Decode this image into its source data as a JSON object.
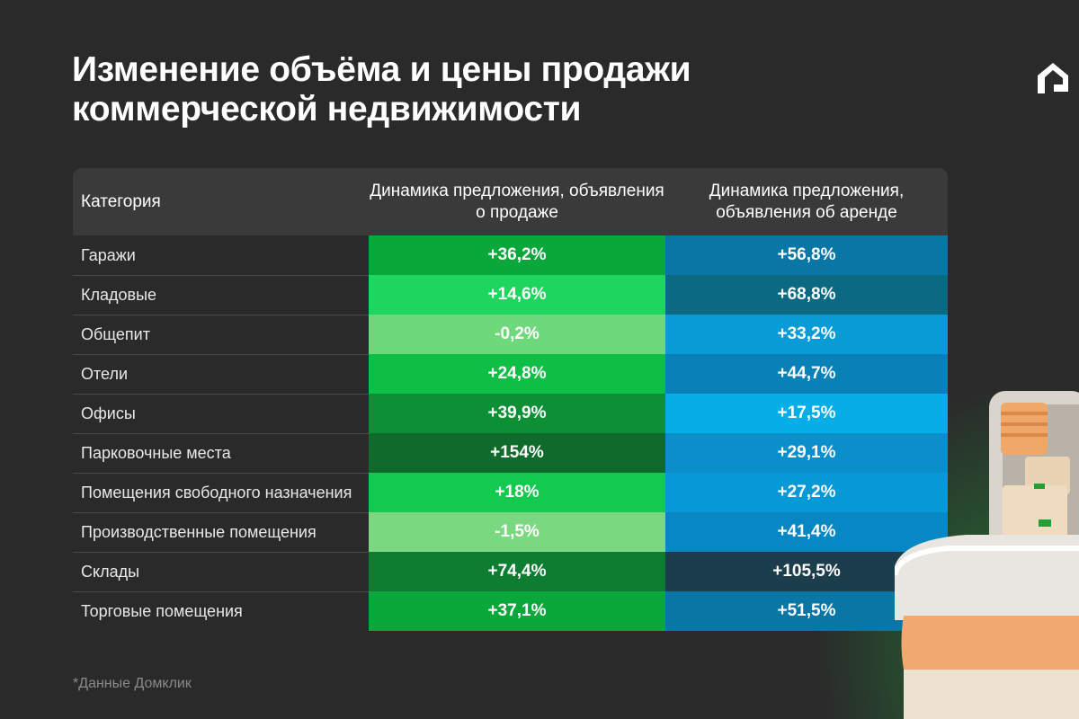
{
  "title": {
    "line1": "Изменение объёма и цены продажи",
    "line2": "коммерческой недвижимости"
  },
  "table": {
    "headers": {
      "category": "Категория",
      "sale": "Динамика предложения, объявления о продаже",
      "rent": "Динамика предложения, объявления об аренде"
    },
    "rows": [
      {
        "category": "Гаражи",
        "sale": "+36,2%",
        "rent": "+56,8%",
        "sale_color": "#0aa83b",
        "rent_color": "#0a76a6"
      },
      {
        "category": "Кладовые",
        "sale": "+14,6%",
        "rent": "+68,8%",
        "sale_color": "#1ed65e",
        "rent_color": "#0b6a82"
      },
      {
        "category": "Общепит",
        "sale": "-0,2%",
        "rent": "+33,2%",
        "sale_color": "#6dd97a",
        "rent_color": "#089bd6"
      },
      {
        "category": "Отели",
        "sale": "+24,8%",
        "rent": "+44,7%",
        "sale_color": "#0fbf45",
        "rent_color": "#0880b8"
      },
      {
        "category": "Офисы",
        "sale": "+39,9%",
        "rent": "+17,5%",
        "sale_color": "#0c8f35",
        "rent_color": "#06aee8"
      },
      {
        "category": "Парковочные места",
        "sale": "+154%",
        "rent": "+29,1%",
        "sale_color": "#0f6b2c",
        "rent_color": "#0a8fca"
      },
      {
        "category": "Помещения свободного назначения",
        "sale": "+18%",
        "rent": "+27,2%",
        "sale_color": "#14c94f",
        "rent_color": "#0798d6"
      },
      {
        "category": "Производственные помещения",
        "sale": "-1,5%",
        "rent": "+41,4%",
        "sale_color": "#79d880",
        "rent_color": "#0788c4"
      },
      {
        "category": "Склады",
        "sale": "+74,4%",
        "rent": "+105,5%",
        "sale_color": "#0d7d31",
        "rent_color": "#1c3e4c"
      },
      {
        "category": "Торговые помещения",
        "sale": "+37,1%",
        "rent": "+51,5%",
        "sale_color": "#0aa83b",
        "rent_color": "#0a76a6"
      }
    ]
  },
  "chart_data": {
    "type": "table",
    "title": "Изменение объёма и цены продажи коммерческой недвижимости",
    "columns": [
      "Категория",
      "Динамика предложения, объявления о продаже",
      "Динамика предложения, объявления об аренде"
    ],
    "categories": [
      "Гаражи",
      "Кладовые",
      "Общепит",
      "Отели",
      "Офисы",
      "Парковочные места",
      "Помещения свободного назначения",
      "Производственные помещения",
      "Склады",
      "Торговые помещения"
    ],
    "series": [
      {
        "name": "Динамика предложения, объявления о продаже",
        "values": [
          36.2,
          14.6,
          -0.2,
          24.8,
          39.9,
          154,
          18,
          -1.5,
          74.4,
          37.1
        ]
      },
      {
        "name": "Динамика предложения, объявления об аренде",
        "values": [
          56.8,
          68.8,
          33.2,
          44.7,
          17.5,
          29.1,
          27.2,
          41.4,
          105.5,
          51.5
        ]
      }
    ]
  },
  "footnote": "*Данные Домклик",
  "colors": {
    "background": "#2a2a2a",
    "header": "#3a3a3a",
    "accent_green": "#21a038"
  },
  "icons": {
    "logo": "domclick-house-logo",
    "illustration": "storage-boxes-illustration"
  }
}
